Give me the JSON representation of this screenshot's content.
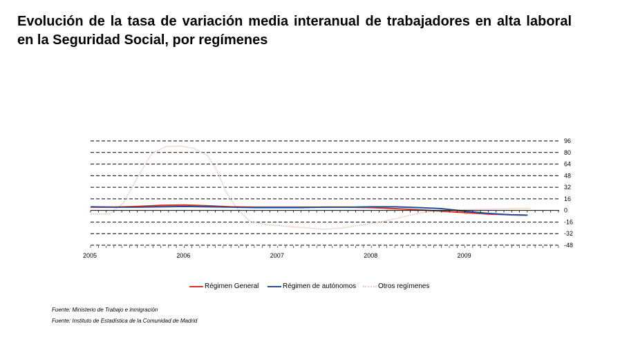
{
  "title": "Evolución de la tasa de variación media interanual de trabajadores en alta laboral en la Seguridad Social, por  regímenes",
  "chart_data": {
    "type": "line",
    "title": "",
    "xlabel": "",
    "ylabel": "",
    "x_tick_labels": [
      "2005",
      "2006",
      "2007",
      "2008",
      "2009"
    ],
    "y_ticks": [
      96,
      80,
      64,
      48,
      32,
      16,
      0,
      -16,
      -32,
      -48
    ],
    "y_tick_labels": [
      "96",
      "80",
      "64",
      "48",
      "32",
      "16",
      "0",
      "-16",
      "-32",
      "-48"
    ],
    "ylim": [
      -48,
      96
    ],
    "xlim": [
      2005.0,
      2010.0
    ],
    "y_axis_side": "right",
    "grid": "horizontal dashed",
    "legend_position": "bottom",
    "series": [
      {
        "name": "Régimen General",
        "color": "#e03020",
        "x": [
          2005.0,
          2005.25,
          2005.5,
          2005.75,
          2006.0,
          2006.25,
          2006.5,
          2006.75,
          2007.0,
          2007.25,
          2007.5,
          2007.75,
          2008.0,
          2008.25,
          2008.5,
          2008.75,
          2009.0,
          2009.25,
          2009.5,
          2009.67
        ],
        "y": [
          4.5,
          4.5,
          5.5,
          7,
          7.5,
          6.5,
          5,
          4.5,
          4.5,
          4.5,
          4.5,
          4.5,
          4,
          2.5,
          1,
          -1,
          -3,
          -5,
          -6,
          -6.5
        ]
      },
      {
        "name": "Régimen de autónomos",
        "color": "#1f4e9c",
        "x": [
          2005.0,
          2005.25,
          2005.5,
          2005.75,
          2006.0,
          2006.25,
          2006.5,
          2006.75,
          2007.0,
          2007.25,
          2007.5,
          2007.75,
          2008.0,
          2008.25,
          2008.5,
          2008.75,
          2009.0,
          2009.25,
          2009.5,
          2009.67
        ],
        "y": [
          5,
          4.5,
          4.5,
          5,
          5.5,
          5,
          4.5,
          4,
          4,
          4,
          4.5,
          4.5,
          5,
          5,
          4,
          2.5,
          -1,
          -4,
          -6,
          -6.5
        ]
      },
      {
        "name": "Otros regímenes",
        "color": "#f0c8b8",
        "x": [
          2005.0,
          2005.2,
          2005.35,
          2005.5,
          2005.65,
          2005.8,
          2005.95,
          2006.1,
          2006.25,
          2006.35,
          2006.45,
          2006.55,
          2006.7,
          2006.9,
          2007.1,
          2007.3,
          2007.5,
          2007.7,
          2007.9,
          2008.1,
          2008.3,
          2008.5,
          2008.7,
          2008.9,
          2009.1,
          2009.3,
          2009.5,
          2009.7
        ],
        "y": [
          -5,
          -5,
          10,
          45,
          78,
          88,
          89,
          86,
          76,
          55,
          25,
          5,
          -15,
          -20,
          -22,
          -24,
          -26,
          -24,
          -20,
          -16,
          -10,
          -4,
          0,
          1,
          1.5,
          2,
          2.5,
          3
        ]
      }
    ]
  },
  "legend": {
    "items": [
      {
        "label": "Régimen General"
      },
      {
        "label": "Régimen de autónomos"
      },
      {
        "label": "Otros regímenes"
      }
    ]
  },
  "sources": {
    "line1": "Fuente: Ministerio de Trabajo e inmigración",
    "line2": "Fuente: Instituto de Estadística de la Comunidad de Madrid"
  }
}
